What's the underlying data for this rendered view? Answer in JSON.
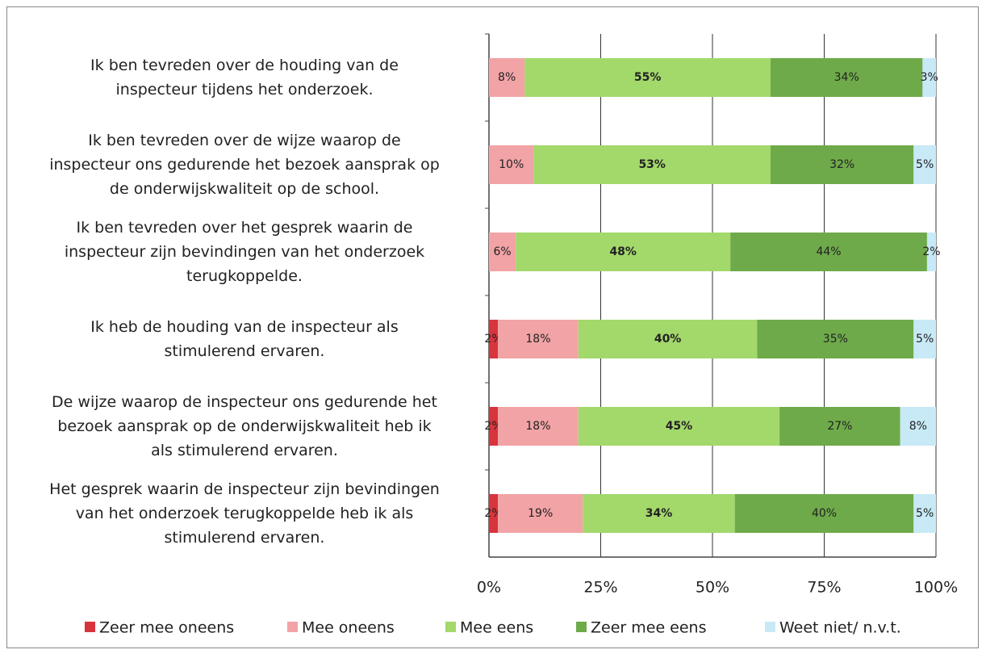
{
  "chart_data": {
    "type": "stacked-bar-horizontal",
    "categories": [
      "Ik ben tevreden over de houding van de\ninspecteur tijdens het onderzoek.",
      "Ik ben tevreden over de wijze waarop de\ninspecteur ons gedurende het bezoek aansprak op\nde onderwijskwaliteit op de school.",
      "Ik ben tevreden over het gesprek waarin de\ninspecteur zijn bevindingen van het onderzoek\nterugkoppelde.",
      "Ik heb de houding van de inspecteur als\nstimulerend ervaren.",
      "De wijze waarop de inspecteur ons gedurende het\nbezoek aansprak op de onderwijskwaliteit heb ik\nals stimulerend ervaren.",
      "Het gesprek waarin de inspecteur zijn bevindingen\nvan het onderzoek terugkoppelde heb ik als\nstimulerend ervaren."
    ],
    "series": [
      {
        "name": "Zeer mee oneens",
        "color": "#d8343c",
        "values": [
          0,
          0,
          0,
          2,
          2,
          2
        ],
        "value_labels": [
          null,
          null,
          null,
          "2%",
          "2%",
          "2%"
        ]
      },
      {
        "name": "Mee oneens",
        "color": "#f2a3a6",
        "values": [
          8,
          10,
          6,
          18,
          18,
          19
        ],
        "value_labels": [
          "8%",
          "10%",
          "6%",
          "18%",
          "18%",
          "19%"
        ]
      },
      {
        "name": "Mee eens",
        "color": "#a3d86b",
        "values": [
          55,
          53,
          48,
          40,
          45,
          34
        ],
        "value_labels": [
          "55%",
          "53%",
          "48%",
          "40%",
          "45%",
          "34%"
        ]
      },
      {
        "name": "Zeer mee eens",
        "color": "#6eaa4a",
        "values": [
          34,
          32,
          44,
          35,
          27,
          40
        ],
        "value_labels": [
          "34%",
          "32%",
          "44%",
          "35%",
          "27%",
          "40%"
        ]
      },
      {
        "name": "Weet niet/ n.v.t.",
        "color": "#c8e9f6",
        "values": [
          3,
          5,
          2,
          5,
          8,
          5
        ],
        "value_labels": [
          "3%",
          "5%",
          "2%",
          "5%",
          "8%",
          "5%"
        ]
      }
    ],
    "xlim": [
      0,
      100
    ],
    "xticks": [
      {
        "value": 0,
        "label": "0%"
      },
      {
        "value": 25,
        "label": "25%"
      },
      {
        "value": 50,
        "label": "50%"
      },
      {
        "value": 75,
        "label": "75%"
      },
      {
        "value": 100,
        "label": "100%"
      }
    ],
    "grid": true,
    "legend": "bottom"
  }
}
